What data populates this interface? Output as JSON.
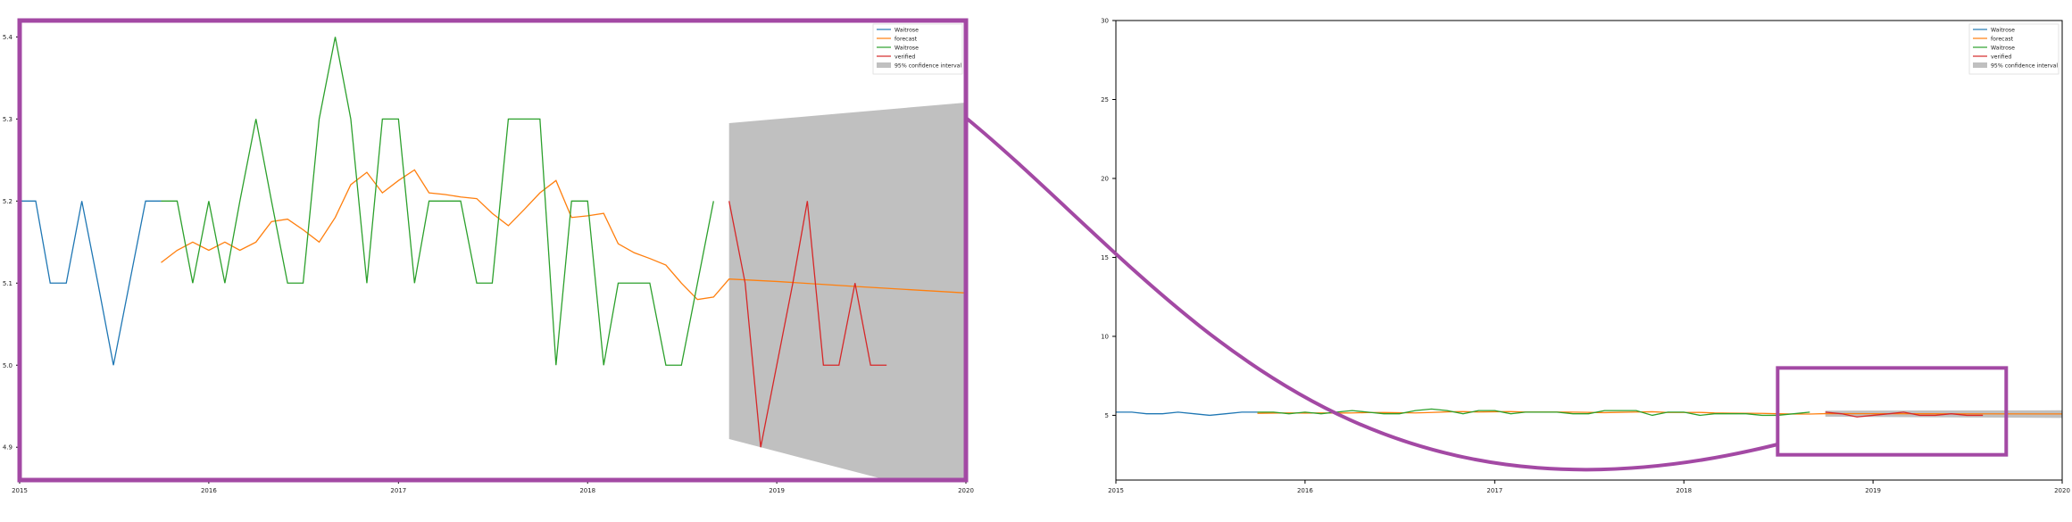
{
  "chart_data": [
    {
      "type": "line",
      "title": "",
      "xlabel": "",
      "ylabel": "",
      "xlim": [
        "2015-01-01",
        "2020-01-01"
      ],
      "ylim": [
        4.86,
        5.42
      ],
      "x_ticks": [
        "2015-01-01",
        "2016-01-01",
        "2017-01-01",
        "2018-01-01",
        "2019-01-01",
        "2020-01-01"
      ],
      "x_tick_labels": [
        "2015",
        "2016",
        "2017",
        "2018",
        "2019",
        "2020"
      ],
      "y_ticks": [
        4.9,
        5.0,
        5.1,
        5.2,
        5.3,
        5.4
      ],
      "y_tick_labels": [
        "4.9",
        "5.0",
        "5.1",
        "5.2",
        "5.3",
        "5.4"
      ],
      "legend_position": "top-right",
      "legend": [
        "Waitrose",
        "forecast",
        "Waitrose",
        "verified",
        "95% confidence interval"
      ],
      "series": [
        {
          "name": "Waitrose",
          "color": "#1f77b4",
          "points": [
            [
              "2015-01-01",
              5.2
            ],
            [
              "2015-02-01",
              5.2
            ],
            [
              "2015-03-01",
              5.1
            ],
            [
              "2015-04-01",
              5.1
            ],
            [
              "2015-05-01",
              5.2
            ],
            [
              "2015-06-01",
              5.1
            ],
            [
              "2015-07-01",
              5.0
            ],
            [
              "2015-08-01",
              5.1
            ],
            [
              "2015-09-01",
              5.2
            ],
            [
              "2015-10-01",
              5.2
            ]
          ]
        },
        {
          "name": "forecast",
          "color": "#ff7f0e",
          "points": [
            [
              "2015-10-01",
              5.125
            ],
            [
              "2015-11-01",
              5.14
            ],
            [
              "2015-12-01",
              5.15
            ],
            [
              "2016-01-01",
              5.14
            ],
            [
              "2016-02-01",
              5.15
            ],
            [
              "2016-03-01",
              5.14
            ],
            [
              "2016-04-01",
              5.15
            ],
            [
              "2016-05-01",
              5.175
            ],
            [
              "2016-06-01",
              5.178
            ],
            [
              "2016-07-01",
              5.165
            ],
            [
              "2016-08-01",
              5.15
            ],
            [
              "2016-09-01",
              5.18
            ],
            [
              "2016-10-01",
              5.22
            ],
            [
              "2016-11-01",
              5.235
            ],
            [
              "2016-12-01",
              5.21
            ],
            [
              "2017-01-01",
              5.225
            ],
            [
              "2017-02-01",
              5.238
            ],
            [
              "2017-03-01",
              5.21
            ],
            [
              "2017-04-01",
              5.208
            ],
            [
              "2017-05-01",
              5.205
            ],
            [
              "2017-06-01",
              5.203
            ],
            [
              "2017-07-01",
              5.185
            ],
            [
              "2017-08-01",
              5.17
            ],
            [
              "2017-09-01",
              5.19
            ],
            [
              "2017-10-01",
              5.21
            ],
            [
              "2017-11-01",
              5.225
            ],
            [
              "2017-12-01",
              5.18
            ],
            [
              "2018-01-01",
              5.182
            ],
            [
              "2018-02-01",
              5.185
            ],
            [
              "2018-03-01",
              5.148
            ],
            [
              "2018-04-01",
              5.137
            ],
            [
              "2018-05-01",
              5.13
            ],
            [
              "2018-06-01",
              5.122
            ],
            [
              "2018-07-01",
              5.1
            ],
            [
              "2018-08-01",
              5.08
            ],
            [
              "2018-09-01",
              5.083
            ],
            [
              "2018-10-01",
              5.105
            ],
            [
              "2019-01-01",
              5.102
            ],
            [
              "2019-06-01",
              5.096
            ],
            [
              "2020-01-01",
              5.088
            ]
          ]
        },
        {
          "name": "Waitrose",
          "color": "#2ca02c",
          "points": [
            [
              "2015-10-01",
              5.2
            ],
            [
              "2015-11-01",
              5.2
            ],
            [
              "2015-12-01",
              5.1
            ],
            [
              "2016-01-01",
              5.2
            ],
            [
              "2016-02-01",
              5.1
            ],
            [
              "2016-03-01",
              5.2
            ],
            [
              "2016-04-01",
              5.3
            ],
            [
              "2016-05-01",
              5.2
            ],
            [
              "2016-06-01",
              5.1
            ],
            [
              "2016-07-01",
              5.1
            ],
            [
              "2016-08-01",
              5.3
            ],
            [
              "2016-09-01",
              5.4
            ],
            [
              "2016-10-01",
              5.3
            ],
            [
              "2016-11-01",
              5.1
            ],
            [
              "2016-12-01",
              5.3
            ],
            [
              "2017-01-01",
              5.3
            ],
            [
              "2017-02-01",
              5.1
            ],
            [
              "2017-03-01",
              5.2
            ],
            [
              "2017-04-01",
              5.2
            ],
            [
              "2017-05-01",
              5.2
            ],
            [
              "2017-06-01",
              5.1
            ],
            [
              "2017-07-01",
              5.1
            ],
            [
              "2017-08-01",
              5.3
            ],
            [
              "2017-09-01",
              5.3
            ],
            [
              "2017-10-01",
              5.3
            ],
            [
              "2017-11-01",
              5.0
            ],
            [
              "2017-12-01",
              5.2
            ],
            [
              "2018-01-01",
              5.2
            ],
            [
              "2018-02-01",
              5.0
            ],
            [
              "2018-03-01",
              5.1
            ],
            [
              "2018-04-01",
              5.1
            ],
            [
              "2018-05-01",
              5.1
            ],
            [
              "2018-06-01",
              5.0
            ],
            [
              "2018-07-01",
              5.0
            ],
            [
              "2018-08-01",
              5.1
            ],
            [
              "2018-09-01",
              5.2
            ]
          ]
        },
        {
          "name": "verified",
          "color": "#d62728",
          "points": [
            [
              "2018-10-01",
              5.2
            ],
            [
              "2018-11-01",
              5.1
            ],
            [
              "2018-12-01",
              4.9
            ],
            [
              "2019-01-01",
              5.0
            ],
            [
              "2019-02-01",
              5.1
            ],
            [
              "2019-03-01",
              5.2
            ],
            [
              "2019-04-01",
              5.0
            ],
            [
              "2019-05-01",
              5.0
            ],
            [
              "2019-06-01",
              5.1
            ],
            [
              "2019-07-01",
              5.0
            ],
            [
              "2019-08-01",
              5.0
            ]
          ]
        }
      ],
      "confidence_interval": {
        "name": "95% confidence interval",
        "color": "#c0c0c0",
        "x": [
          "2018-10-01",
          "2020-01-01"
        ],
        "lower": [
          4.91,
          4.835
        ],
        "upper": [
          5.295,
          5.32
        ]
      }
    },
    {
      "type": "line",
      "title": "",
      "xlabel": "",
      "ylabel": "",
      "xlim": [
        "2015-01-01",
        "2020-01-01"
      ],
      "ylim": [
        0.9,
        30
      ],
      "x_ticks": [
        "2015-01-01",
        "2016-01-01",
        "2017-01-01",
        "2018-01-01",
        "2019-01-01",
        "2020-01-01"
      ],
      "x_tick_labels": [
        "2015",
        "2016",
        "2017",
        "2018",
        "2019",
        "2020"
      ],
      "y_ticks": [
        5,
        10,
        15,
        20,
        25,
        30
      ],
      "y_tick_labels": [
        "5",
        "10",
        "15",
        "20",
        "25",
        "30"
      ],
      "legend_position": "top-right",
      "legend": [
        "Waitrose",
        "forecast",
        "Waitrose",
        "verified",
        "95% confidence interval"
      ],
      "series_ref": "same data as first chart",
      "zoom_box": {
        "x": [
          "2018-07-01",
          "2019-09-15"
        ],
        "y": [
          2.5,
          8.0
        ],
        "color": "#a349a4"
      }
    }
  ]
}
